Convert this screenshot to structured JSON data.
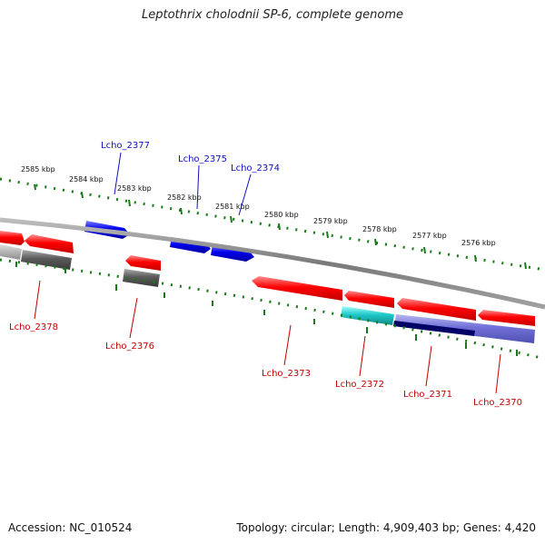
{
  "title": "Leptothrix cholodnii SP-6, complete genome",
  "footer": {
    "accession": "Accession: NC_010524",
    "summary": "Topology: circular; Length: 4,909,403 bp; Genes: 4,420"
  },
  "scale_labels": [
    "2585 kbp",
    "2584 kbp",
    "2583 kbp",
    "2582 kbp",
    "2581 kbp",
    "2580 kbp",
    "2579 kbp",
    "2578 kbp",
    "2577 kbp",
    "2576 kbp"
  ],
  "genes_forward": [
    "Lcho_2377",
    "Lcho_2375",
    "Lcho_2374"
  ],
  "genes_reverse": [
    "Lcho_2378",
    "Lcho_2376",
    "Lcho_2373",
    "Lcho_2372",
    "Lcho_2371",
    "Lcho_2370"
  ],
  "colors": {
    "forward_cds": "#0000e0",
    "reverse_cds": "#ee0000",
    "other_feature": "#666666",
    "teal_feature": "#20c0c0",
    "purple_feature": "#7070d0",
    "navy_feature": "#000070",
    "scale_ticks": "#1a7a1a",
    "backbone": "#808080"
  }
}
